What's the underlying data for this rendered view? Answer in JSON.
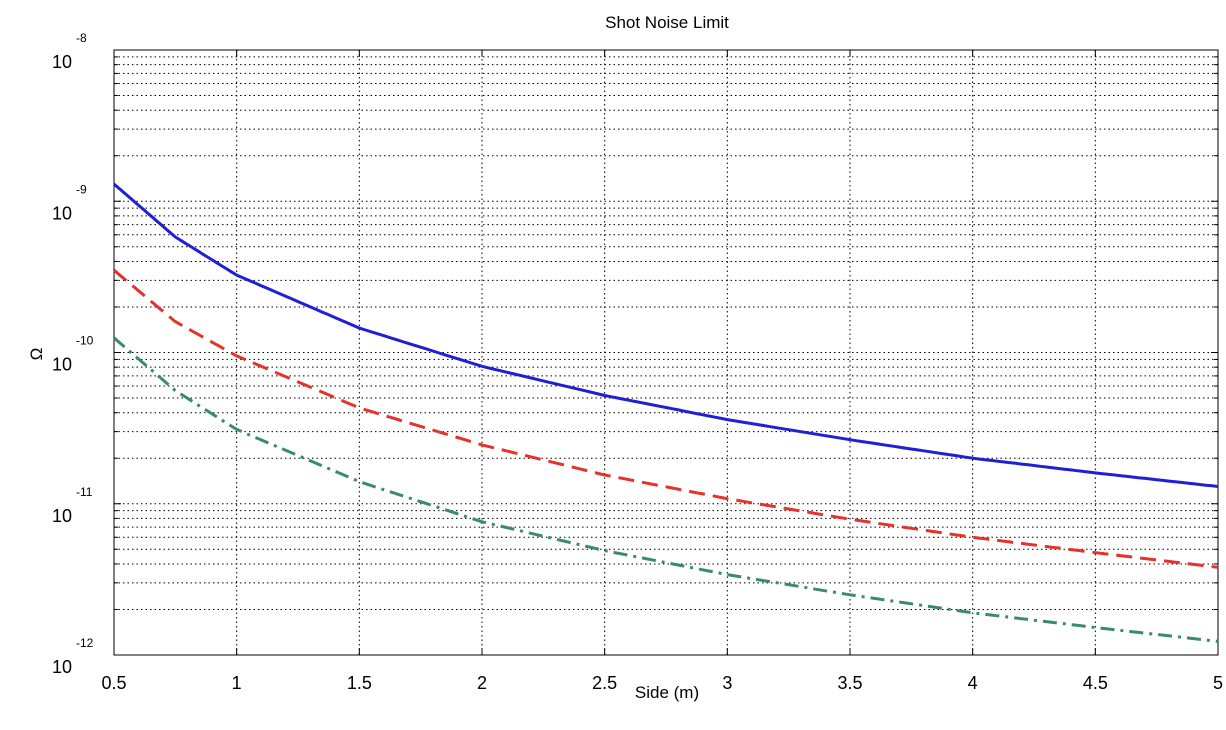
{
  "chart_data": {
    "type": "line",
    "title": "Shot Noise Limit",
    "xlabel": "Side (m)",
    "ylabel": "Ω",
    "xlim": [
      0.5,
      5
    ],
    "ylim": [
      1e-12,
      1e-08
    ],
    "yscale": "log",
    "grid": true,
    "grid_style": "dotted",
    "x_ticks": [
      "0.5",
      "1",
      "1.5",
      "2",
      "2.5",
      "3",
      "3.5",
      "4",
      "4.5",
      "5"
    ],
    "y_ticks": [
      {
        "base": "10",
        "exp": "-12"
      },
      {
        "base": "10",
        "exp": "-11"
      },
      {
        "base": "10",
        "exp": "-10"
      },
      {
        "base": "10",
        "exp": "-9"
      },
      {
        "base": "10",
        "exp": "-8"
      }
    ],
    "x": [
      0.5,
      0.75,
      1,
      1.5,
      2,
      2.5,
      3,
      3.5,
      4,
      4.5,
      5
    ],
    "series": [
      {
        "style": "solid",
        "color": "#1f1fd6",
        "values": [
          1.3e-09,
          5.8e-10,
          3.25e-10,
          1.45e-10,
          8.1e-11,
          5.2e-11,
          3.6e-11,
          2.65e-11,
          2e-11,
          1.6e-11,
          1.3e-11
        ]
      },
      {
        "style": "dashed",
        "color": "#e8312b",
        "values": [
          3.5e-10,
          1.6e-10,
          9.5e-11,
          4.3e-11,
          2.45e-11,
          1.55e-11,
          1.08e-11,
          7.9e-12,
          6e-12,
          4.75e-12,
          3.8e-12
        ]
      },
      {
        "style": "dashdot",
        "color": "#3a8a6e",
        "values": [
          1.25e-10,
          5.6e-11,
          3.1e-11,
          1.4e-11,
          7.6e-12,
          4.9e-12,
          3.4e-12,
          2.5e-12,
          1.9e-12,
          1.52e-12,
          1.23e-12
        ]
      }
    ]
  }
}
